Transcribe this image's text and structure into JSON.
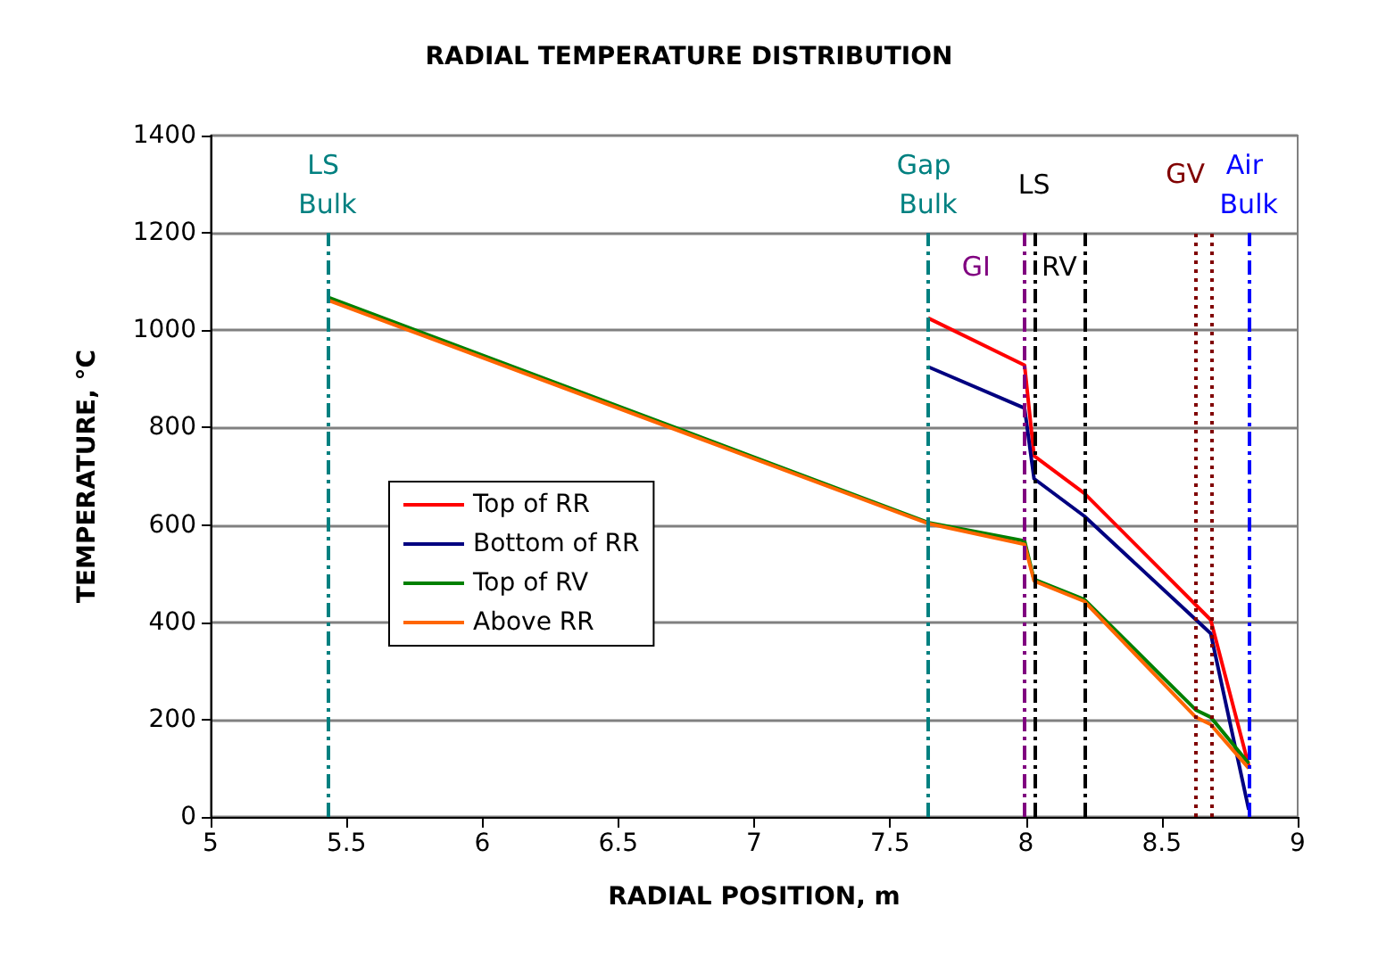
{
  "chart_data": {
    "type": "line",
    "title": "RADIAL TEMPERATURE DISTRIBUTION",
    "xlabel": "RADIAL POSITION, m",
    "ylabel": "TEMPERATURE, °C",
    "series": [
      {
        "name": "Top of RR",
        "color": "#ff0000",
        "x": [
          7.64,
          7.995,
          8.03,
          8.215,
          8.68,
          8.82
        ],
        "values": [
          1025,
          928,
          742,
          665,
          405,
          105
        ]
      },
      {
        "name": "Bottom of RR",
        "color": "#000080",
        "x": [
          7.64,
          7.995,
          8.03,
          8.215,
          8.68,
          8.82
        ],
        "values": [
          925,
          840,
          695,
          618,
          377,
          15
        ]
      },
      {
        "name": "Top of RV",
        "color": "#008000",
        "x": [
          5.43,
          7.64,
          7.995,
          8.03,
          8.215,
          8.625,
          8.68,
          8.82
        ],
        "values": [
          1068,
          605,
          567,
          488,
          447,
          220,
          205,
          110
        ]
      },
      {
        "name": "Above RR",
        "color": "#ff6600",
        "x": [
          5.43,
          7.64,
          7.995,
          8.03,
          8.215,
          8.625,
          8.68,
          8.82
        ],
        "values": [
          1062,
          603,
          560,
          485,
          443,
          205,
          190,
          100
        ]
      }
    ],
    "xlim": [
      5,
      9
    ],
    "xticks": [
      5,
      5.5,
      6,
      6.5,
      7,
      7.5,
      8,
      8.5,
      9
    ],
    "ylim": [
      0,
      1400
    ],
    "yticks": [
      0,
      200,
      400,
      600,
      800,
      1000,
      1200,
      1400
    ],
    "grid": "y",
    "legend": "left",
    "marker": "none",
    "line_style": "solid",
    "ref_lines": [
      {
        "axis": "x",
        "value": 5.43,
        "label": "LS Bulk",
        "color": "#008080",
        "line_style": "dashed"
      },
      {
        "axis": "x",
        "value": 7.64,
        "color": "#800080",
        "line_style": "dashed"
      },
      {
        "axis": "x",
        "value": 7.64,
        "label": "Gap Bulk",
        "color": "#008080",
        "line_style": "dashed"
      },
      {
        "axis": "x",
        "value": 7.995,
        "label": "GI",
        "color": "#800080",
        "line_style": "dashed"
      },
      {
        "axis": "x",
        "value": 8.03,
        "label": "LS",
        "color": "#000000",
        "line_style": "dashed"
      },
      {
        "axis": "x",
        "value": 8.215,
        "label": "RV",
        "color": "#000000",
        "line_style": "dashed"
      },
      {
        "axis": "x",
        "value": 8.625,
        "color": "#800000",
        "line_style": "dotted"
      },
      {
        "axis": "x",
        "value": 8.68,
        "label": "GV",
        "color": "#800000",
        "line_style": "dotted"
      },
      {
        "axis": "x",
        "value": 8.82,
        "label": "Air Bulk",
        "color": "#0000ff",
        "line_style": "dashed"
      }
    ]
  }
}
